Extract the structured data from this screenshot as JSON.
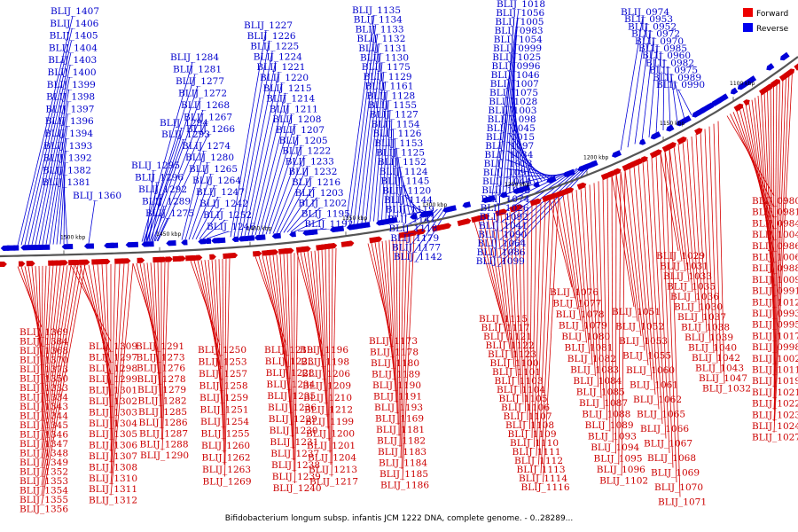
{
  "legend": [
    {
      "label": "Forward",
      "color": "#ee0000"
    },
    {
      "label": "Reverse",
      "color": "#0000ee"
    }
  ],
  "footer": "Bifidobacterium longum subsp. infantis JCM 1222 DNA, complete genome. - 0..28289...",
  "colors": {
    "forward": "#d40000",
    "reverse": "#0000d8",
    "backbone": "#555555"
  },
  "axis_labels": [
    "1500 kbp",
    "1450 kbp",
    "1400 kbp",
    "1350 kbp",
    "1300 kbp",
    "1250 kbp",
    "1200 kbp",
    "1150 kbp",
    "1100 kbp"
  ],
  "reverse_labels": [
    "BLIJ_1407",
    "BLIJ_1406",
    "BLIJ_1405",
    "BLIJ_1404",
    "BLIJ_1403",
    "BLIJ_1400",
    "BLIJ_1399",
    "BLIJ_1398",
    "BLIJ_1397",
    "BLIJ_1396",
    "BLIJ_1394",
    "BLIJ_1393",
    "BLIJ_1392",
    "BLIJ_1382",
    "BLIJ_1381",
    "BLIJ_1360",
    "BLIJ_1284",
    "BLIJ_1281",
    "BLIJ_1277",
    "BLIJ_1272",
    "BLIJ_1268",
    "BLIJ_1267",
    "BLIJ_1266",
    "BLIJ_1294",
    "BLIJ_1293",
    "BLIJ_1295",
    "BLIJ_1296",
    "BLIJ_1292",
    "BLIJ_1289",
    "BLIJ_1275",
    "BLIJ_1274",
    "BLIJ_1280",
    "BLIJ_1265",
    "BLIJ_1264",
    "BLIJ_1247",
    "BLIJ_1242",
    "BLIJ_1252",
    "BLIJ_1246",
    "BLIJ_1227",
    "BLIJ_1226",
    "BLIJ_1225",
    "BLIJ_1224",
    "BLIJ_1221",
    "BLIJ_1220",
    "BLIJ_1215",
    "BLIJ_1214",
    "BLIJ_1211",
    "BLIJ_1208",
    "BLIJ_1207",
    "BLIJ_1205",
    "BLIJ_1222",
    "BLIJ_1233",
    "BLIJ_1232",
    "BLIJ_1216",
    "BLIJ_1203",
    "BLIJ_1202",
    "BLIJ_1195",
    "BLIJ_1192",
    "BLIJ_1135",
    "BLIJ_1134",
    "BLIJ_1133",
    "BLIJ_1132",
    "BLIJ_1131",
    "BLIJ_1130",
    "BLIJ_1175",
    "BLIJ_1129",
    "BLIJ_1161",
    "BLIJ_1128",
    "BLIJ_1155",
    "BLIJ_1127",
    "BLIJ_1154",
    "BLIJ_1126",
    "BLIJ_1153",
    "BLIJ_1125",
    "BLIJ_1152",
    "BLIJ_1124",
    "BLIJ_1145",
    "BLIJ_1120",
    "BLIJ_1144",
    "BLIJ_1119",
    "BLIJ_1141",
    "BLIJ_1118",
    "BLIJ_1179",
    "BLIJ_1177",
    "BLIJ_1142",
    "BLIJ_1018",
    "BLIJ_1056",
    "BLIJ_1005",
    "BLIJ_0983",
    "BLIJ_1054",
    "BLIJ_0999",
    "BLIJ_1025",
    "BLIJ_0996",
    "BLIJ_1046",
    "BLIJ_1007",
    "BLIJ_1075",
    "BLIJ_1028",
    "BLIJ_1003",
    "BLIJ_1098",
    "BLIJ_1045",
    "BLIJ_1015",
    "BLIJ_1097",
    "BLIJ_1034",
    "BLIJ_1013",
    "BLIJ_1091",
    "BLIJ_1044",
    "BLIJ_1008",
    "BLIJ_1074",
    "BLIJ_1026",
    "BLIJ_1092",
    "BLIJ_1041",
    "BLIJ_1090",
    "BLIJ_1064",
    "BLIJ_1086",
    "BLIJ_1099",
    "BLIJ_0974",
    "BLIJ_0953",
    "BLIJ_0952",
    "BLIJ_0972",
    "BLIJ_0970",
    "BLIJ_0985",
    "BLIJ_0960",
    "BLIJ_0982",
    "BLIJ_0975",
    "BLIJ_0989",
    "BLIJ_0990",
    "BLIJ_1048",
    "BLIJ_1049",
    "BLIJ_1050",
    "BLIJ_1057",
    "BLIJ_1058",
    "BLIJ_1059",
    "BLIJ_1063",
    "BLIJ_1020",
    "BLIJ_1016",
    "BLIJ_1139",
    "BLIJ_1143",
    "BLIJ_1146",
    "BLIJ_1148",
    "BLIJ_1136",
    "BLIJ_1137",
    "BLIJ_1138",
    "BLIJ_1140",
    "BLIJ_1147",
    "BLIJ_1149",
    "BLIJ_1150",
    "BLIJ_1151",
    "BLIJ_1156",
    "BLIJ_1157",
    "BLIJ_1166",
    "BLIJ_1167",
    "BLIJ_1168"
  ],
  "forward_labels": [
    "BLIJ_1369",
    "BLIJ_1384",
    "BLIJ_1368",
    "BLIJ_1370",
    "BLIJ_1373",
    "BLIJ_1350",
    "BLIJ_1333",
    "BLIJ_1334",
    "BLIJ_1343",
    "BLIJ_1344",
    "BLIJ_1345",
    "BLIJ_1346",
    "BLIJ_1347",
    "BLIJ_1348",
    "BLIJ_1349",
    "BLIJ_1352",
    "BLIJ_1353",
    "BLIJ_1354",
    "BLIJ_1355",
    "BLIJ_1356",
    "BLIJ_1309",
    "BLIJ_1297",
    "BLIJ_1298",
    "BLIJ_1299",
    "BLIJ_1301",
    "BLIJ_1302",
    "BLIJ_1303",
    "BLIJ_1304",
    "BLIJ_1305",
    "BLIJ_1306",
    "BLIJ_1307",
    "BLIJ_1308",
    "BLIJ_1310",
    "BLIJ_1311",
    "BLIJ_1312",
    "BLIJ_1291",
    "BLIJ_1273",
    "BLIJ_1276",
    "BLIJ_1278",
    "BLIJ_1279",
    "BLIJ_1282",
    "BLIJ_1285",
    "BLIJ_1286",
    "BLIJ_1287",
    "BLIJ_1288",
    "BLIJ_1290",
    "BLIJ_1250",
    "BLIJ_1253",
    "BLIJ_1257",
    "BLIJ_1258",
    "BLIJ_1259",
    "BLIJ_1251",
    "BLIJ_1254",
    "BLIJ_1255",
    "BLIJ_1260",
    "BLIJ_1262",
    "BLIJ_1263",
    "BLIJ_1269",
    "BLIJ_1219",
    "BLIJ_1223",
    "BLIJ_1228",
    "BLIJ_1234",
    "BLIJ_1235",
    "BLIJ_1236",
    "BLIJ_1229",
    "BLIJ_1230",
    "BLIJ_1231",
    "BLIJ_1237",
    "BLIJ_1238",
    "BLIJ_1239",
    "BLIJ_1240",
    "BLIJ_1196",
    "BLIJ_1198",
    "BLIJ_1206",
    "BLIJ_1209",
    "BLIJ_1210",
    "BLIJ_1212",
    "BLIJ_1199",
    "BLIJ_1200",
    "BLIJ_1201",
    "BLIJ_1204",
    "BLIJ_1213",
    "BLIJ_1217",
    "BLIJ_1173",
    "BLIJ_1178",
    "BLIJ_1180",
    "BLIJ_1189",
    "BLIJ_1190",
    "BLIJ_1191",
    "BLIJ_1193",
    "BLIJ_1169",
    "BLIJ_1181",
    "BLIJ_1182",
    "BLIJ_1183",
    "BLIJ_1184",
    "BLIJ_1185",
    "BLIJ_1186",
    "BLIJ_1115",
    "BLIJ_1117",
    "BLIJ_1121",
    "BLIJ_1122",
    "BLIJ_1123",
    "BLIJ_1100",
    "BLIJ_1101",
    "BLIJ_1103",
    "BLIJ_1104",
    "BLIJ_1105",
    "BLIJ_1106",
    "BLIJ_1107",
    "BLIJ_1108",
    "BLIJ_1109",
    "BLIJ_1110",
    "BLIJ_1111",
    "BLIJ_1112",
    "BLIJ_1113",
    "BLIJ_1114",
    "BLIJ_1116",
    "BLIJ_1076",
    "BLIJ_1077",
    "BLIJ_1078",
    "BLIJ_1079",
    "BLIJ_1080",
    "BLIJ_1081",
    "BLIJ_1082",
    "BLIJ_1083",
    "BLIJ_1084",
    "BLIJ_1085",
    "BLIJ_1087",
    "BLIJ_1088",
    "BLIJ_1089",
    "BLIJ_1093",
    "BLIJ_1094",
    "BLIJ_1095",
    "BLIJ_1096",
    "BLIJ_1102",
    "BLIJ_1051",
    "BLIJ_1052",
    "BLIJ_1053",
    "BLIJ_1055",
    "BLIJ_1060",
    "BLIJ_1061",
    "BLIJ_1062",
    "BLIJ_1065",
    "BLIJ_1066",
    "BLIJ_1067",
    "BLIJ_1068",
    "BLIJ_1069",
    "BLIJ_1070",
    "BLIJ_1071",
    "BLIJ_1029",
    "BLIJ_1031",
    "BLIJ_1033",
    "BLIJ_1035",
    "BLIJ_1036",
    "BLIJ_1030",
    "BLIJ_1037",
    "BLIJ_1038",
    "BLIJ_1039",
    "BLIJ_1040",
    "BLIJ_1042",
    "BLIJ_1043",
    "BLIJ_1047",
    "BLIJ_1032",
    "BLIJ_0980",
    "BLIJ_0981",
    "BLIJ_0984",
    "BLIJ_1004",
    "BLIJ_0986",
    "BLIJ_1006",
    "BLIJ_0988",
    "BLIJ_1009",
    "BLIJ_0991",
    "BLIJ_1012",
    "BLIJ_0993",
    "BLIJ_0995",
    "BLIJ_1017",
    "BLIJ_0998",
    "BLIJ_1002",
    "BLIJ_1011",
    "BLIJ_1019",
    "BLIJ_1021",
    "BLIJ_1022",
    "BLIJ_1023",
    "BLIJ_1024",
    "BLIJ_1027"
  ]
}
